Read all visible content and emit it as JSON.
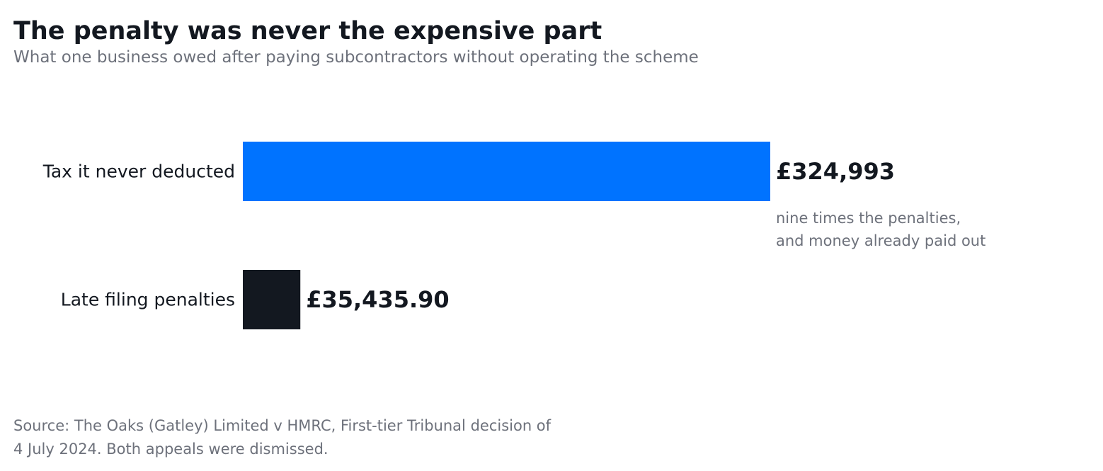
{
  "title": "The penalty was never the expensive part",
  "subtitle": "What one business owed after paying subcontractors without operating the scheme",
  "chart_data": {
    "type": "bar",
    "orientation": "horizontal",
    "categories": [
      "Tax it never deducted",
      "Late filing penalties"
    ],
    "values": [
      324993,
      35435.9
    ],
    "value_labels": [
      "£324,993",
      "£35,435.90"
    ],
    "colors": [
      "#0073ff",
      "#131820"
    ],
    "xlim": [
      0,
      324993
    ],
    "grid": false,
    "axes_visible": false,
    "annotation": {
      "lines": [
        "nine times the penalties,",
        "and money already paid out"
      ]
    }
  },
  "source": {
    "lines": [
      "Source: The Oaks (Gatley) Limited v HMRC, First-tier Tribunal decision of",
      "4 July 2024. Both appeals were dismissed."
    ]
  }
}
